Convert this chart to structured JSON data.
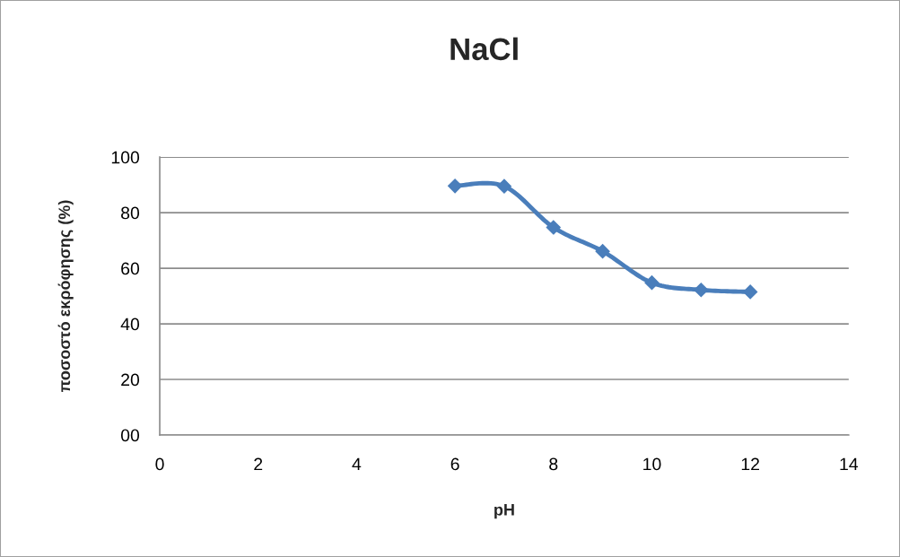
{
  "chart_data": {
    "type": "line",
    "title": "NaCl",
    "xlabel": "pH",
    "ylabel": "ποσοστό εκρόφησης (%)",
    "x": [
      6,
      7,
      8,
      9,
      10,
      11,
      12
    ],
    "series": [
      {
        "color": "#4a7ebb",
        "values": [
          89.6,
          89.5,
          74.7,
          66.1,
          54.8,
          52.2,
          51.5
        ]
      }
    ],
    "xlim": [
      0,
      14
    ],
    "xticks": [
      0,
      2,
      4,
      6,
      8,
      10,
      12,
      14
    ],
    "ylim": [
      0,
      100
    ],
    "yticks": [
      {
        "value": 0,
        "label": "00"
      },
      20,
      40,
      60,
      80,
      100
    ],
    "grid": "y",
    "marker": "diamond",
    "line_style": "solid"
  }
}
